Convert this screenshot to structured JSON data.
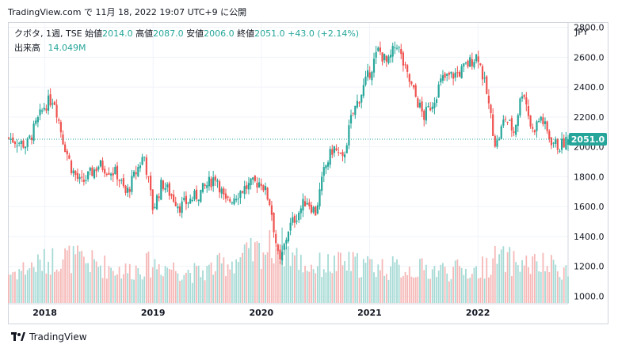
{
  "header": {
    "publisher": "TradingView.com",
    "published": "で 11月 18, 2022 19:07 UTC+9 に公開"
  },
  "legend": {
    "symbol": "クボタ, 1週, TSE",
    "open_label": "始値",
    "open": "2014.0",
    "high_label": "高値",
    "high": "2087.0",
    "low_label": "安値",
    "low": "2006.0",
    "close_label": "終値",
    "close": "2051.0",
    "change": "+43.0 (+2.14%)",
    "volume_label": "出来高",
    "volume": "14.049M"
  },
  "currency": "JPY",
  "last_price_label": "2051.0",
  "footer": {
    "brand": "TradingView"
  },
  "colors": {
    "up": "#26a69a",
    "down": "#ef5350",
    "grid": "#f0f3fa",
    "price_line": "#26a69a"
  },
  "chart_data": {
    "type": "candlestick",
    "interval": "1週",
    "y_axis": {
      "ticks": [
        1000,
        1200,
        1400,
        1600,
        1800,
        2000,
        2200,
        2400,
        2600,
        2800
      ],
      "range": [
        960,
        2830
      ]
    },
    "x_axis": {
      "ticks": [
        "2018",
        "2019",
        "2020",
        "2021",
        "2022"
      ],
      "range": [
        "2017-09",
        "2022-11"
      ]
    },
    "last_price": 2051.0,
    "price_path": [
      [
        "2017-09",
        2060
      ],
      [
        "2017-11",
        2010
      ],
      [
        "2018-01",
        2280
      ],
      [
        "2018-02",
        2330
      ],
      [
        "2018-03",
        2050
      ],
      [
        "2018-04",
        1850
      ],
      [
        "2018-05",
        1750
      ],
      [
        "2018-07",
        1880
      ],
      [
        "2018-09",
        1820
      ],
      [
        "2018-10",
        1680
      ],
      [
        "2018-12",
        1950
      ],
      [
        "2019-01",
        1580
      ],
      [
        "2019-02",
        1760
      ],
      [
        "2019-04",
        1600
      ],
      [
        "2019-06",
        1680
      ],
      [
        "2019-08",
        1810
      ],
      [
        "2019-09",
        1620
      ],
      [
        "2019-11",
        1720
      ],
      [
        "2019-12",
        1750
      ],
      [
        "2020-01",
        1770
      ],
      [
        "2020-02",
        1620
      ],
      [
        "2020-03",
        1200
      ],
      [
        "2020-04",
        1450
      ],
      [
        "2020-06",
        1650
      ],
      [
        "2020-07",
        1560
      ],
      [
        "2020-08",
        1850
      ],
      [
        "2020-09",
        2000
      ],
      [
        "2020-10",
        1900
      ],
      [
        "2020-11",
        2200
      ],
      [
        "2020-12",
        2350
      ],
      [
        "2021-02",
        2650
      ],
      [
        "2021-03",
        2550
      ],
      [
        "2021-04",
        2700
      ],
      [
        "2021-05",
        2500
      ],
      [
        "2021-06",
        2350
      ],
      [
        "2021-07",
        2200
      ],
      [
        "2021-08",
        2300
      ],
      [
        "2021-09",
        2450
      ],
      [
        "2021-11",
        2500
      ],
      [
        "2022-01",
        2620
      ],
      [
        "2022-02",
        2350
      ],
      [
        "2022-03",
        2000
      ],
      [
        "2022-04",
        2200
      ],
      [
        "2022-05",
        2100
      ],
      [
        "2022-06",
        2400
      ],
      [
        "2022-07",
        2100
      ],
      [
        "2022-08",
        2200
      ],
      [
        "2022-09",
        2050
      ],
      [
        "2022-10",
        2000
      ],
      [
        "2022-11",
        2051
      ]
    ],
    "volume_path": [
      [
        "2017-09",
        1.2
      ],
      [
        "2018-03",
        1.9
      ],
      [
        "2018-10",
        1.3
      ],
      [
        "2019-01",
        1.6
      ],
      [
        "2019-06",
        1.2
      ],
      [
        "2020-03",
        2.4
      ],
      [
        "2020-06",
        1.5
      ],
      [
        "2020-11",
        1.6
      ],
      [
        "2021-04",
        1.4
      ],
      [
        "2022-01",
        1.3
      ],
      [
        "2022-03",
        1.8
      ],
      [
        "2022-06",
        1.6
      ],
      [
        "2022-11",
        1.4
      ]
    ]
  }
}
